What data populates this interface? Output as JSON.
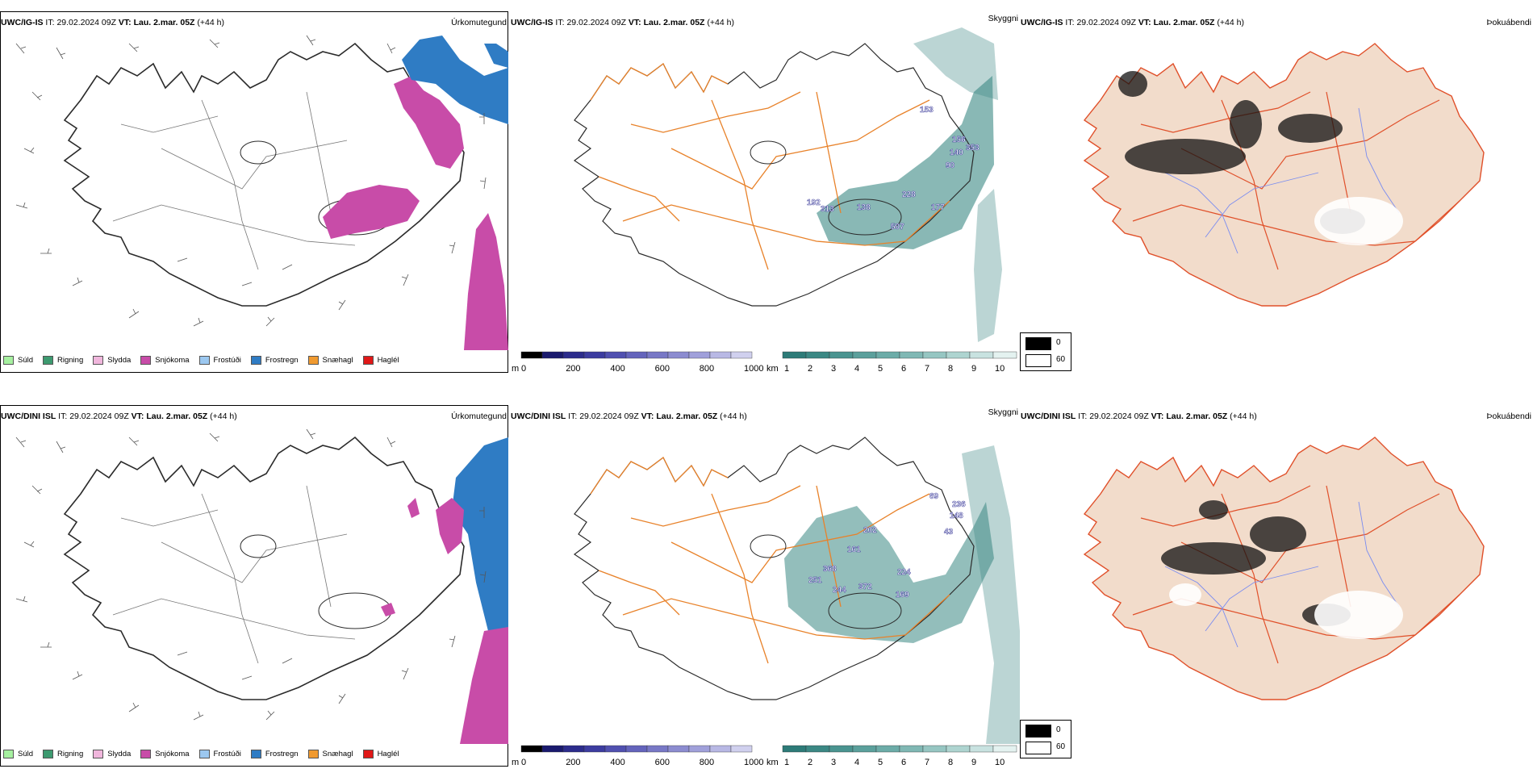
{
  "rows": [
    {
      "model": "UWC/IG-IS",
      "it_label": "IT:",
      "it_value": "29.02.2024 09Z",
      "vt_label": "VT:",
      "vt_value": "Lau. 2.mar. 05Z",
      "lead": "(+44 h)",
      "precip_title": "Úrkomutegund",
      "vis_title": "Skyggni",
      "fog_title": "Þokuábendi",
      "vis_labels": [
        "153",
        "156",
        "140",
        "353",
        "90",
        "192",
        "313",
        "138",
        "228",
        "177",
        "507"
      ]
    },
    {
      "model": "UWC/DINI ISL",
      "it_label": "IT:",
      "it_value": "29.02.2024 09Z",
      "vt_label": "VT:",
      "vt_value": "Lau. 2.mar. 05Z",
      "lead": "(+44 h)",
      "precip_title": "Úrkomutegund",
      "vis_title": "Skyggni",
      "fog_title": "Þokuábendi",
      "vis_labels": [
        "69",
        "236",
        "148",
        "43",
        "202",
        "161",
        "368",
        "224",
        "251",
        "244",
        "372",
        "169"
      ]
    }
  ],
  "precip_legend": [
    {
      "label": "Súld",
      "color": "#a6f0a0"
    },
    {
      "label": "Rigning",
      "color": "#3d9a70"
    },
    {
      "label": "Slydda",
      "color": "#f0b6dc"
    },
    {
      "label": "Snjókoma",
      "color": "#c84ca8"
    },
    {
      "label": "Frostúði",
      "color": "#9cc8f0"
    },
    {
      "label": "Frostregn",
      "color": "#2f7cc4"
    },
    {
      "label": "Snæhagl",
      "color": "#f09a30"
    },
    {
      "label": "Haglél",
      "color": "#e01818"
    }
  ],
  "elevation_bar": {
    "unit": "m",
    "ticks": [
      "0",
      "200",
      "400",
      "600",
      "800",
      "1000"
    ],
    "colors": [
      "#000000",
      "#1a1a6e",
      "#2c2c8c",
      "#3c3ca0",
      "#5050b0",
      "#6464bc",
      "#7878c6",
      "#8c8cd0",
      "#a0a0da",
      "#b8b8e4",
      "#d0d0ee"
    ]
  },
  "visibility_bar": {
    "unit": "km",
    "ticks": [
      "1",
      "2",
      "3",
      "4",
      "5",
      "6",
      "7",
      "8",
      "9",
      "10"
    ],
    "colors": [
      "#2d7b78",
      "#3b8884",
      "#4a9490",
      "#5ba09c",
      "#6cacA8",
      "#80b8b4",
      "#96c6c2",
      "#aed4d0",
      "#c8e2e0",
      "#e4f2f0"
    ]
  },
  "fog_legend": [
    {
      "label": "0",
      "color": "#000000"
    },
    {
      "label": "60",
      "color": "#ffffff"
    }
  ],
  "colors": {
    "iceland_outline": "#2a2a2a",
    "roads": "#e8822a",
    "roads_fog": "#e0502a",
    "rivers": "#7a8cf0",
    "land_fog": "#f2dccb",
    "snow": "#c84ca8",
    "frz_rain": "#2f7cc4",
    "vis_teal": "#3b8884"
  }
}
